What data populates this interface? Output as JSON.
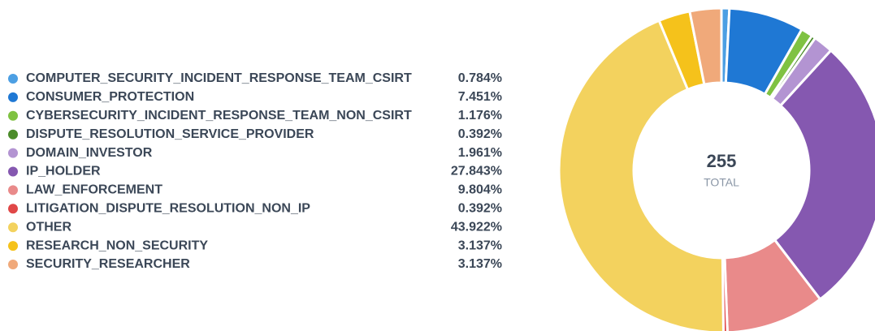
{
  "chart_data": {
    "type": "donut",
    "categories": [
      "COMPUTER_SECURITY_INCIDENT_RESPONSE_TEAM_CSIRT",
      "CONSUMER_PROTECTION",
      "CYBERSECURITY_INCIDENT_RESPONSE_TEAM_NON_CSIRT",
      "DISPUTE_RESOLUTION_SERVICE_PROVIDER",
      "DOMAIN_INVESTOR",
      "IP_HOLDER",
      "LAW_ENFORCEMENT",
      "LITIGATION_DISPUTE_RESOLUTION_NON_IP",
      "OTHER",
      "RESEARCH_NON_SECURITY",
      "SECURITY_RESEARCHER"
    ],
    "values": [
      0.784,
      7.451,
      1.176,
      0.392,
      1.961,
      27.843,
      9.804,
      0.392,
      43.922,
      3.137,
      3.137
    ],
    "value_labels": [
      "0.784%",
      "7.451%",
      "1.176%",
      "0.392%",
      "1.961%",
      "27.843%",
      "9.804%",
      "0.392%",
      "43.922%",
      "3.137%",
      "3.137%"
    ],
    "colors": [
      "#4c9fe3",
      "#1f78d4",
      "#7fc242",
      "#4b8c2a",
      "#b394d2",
      "#8558b0",
      "#e98a8a",
      "#e04747",
      "#f3d25e",
      "#f5c21b",
      "#f0a97a"
    ],
    "total": 255,
    "total_label": "TOTAL"
  }
}
